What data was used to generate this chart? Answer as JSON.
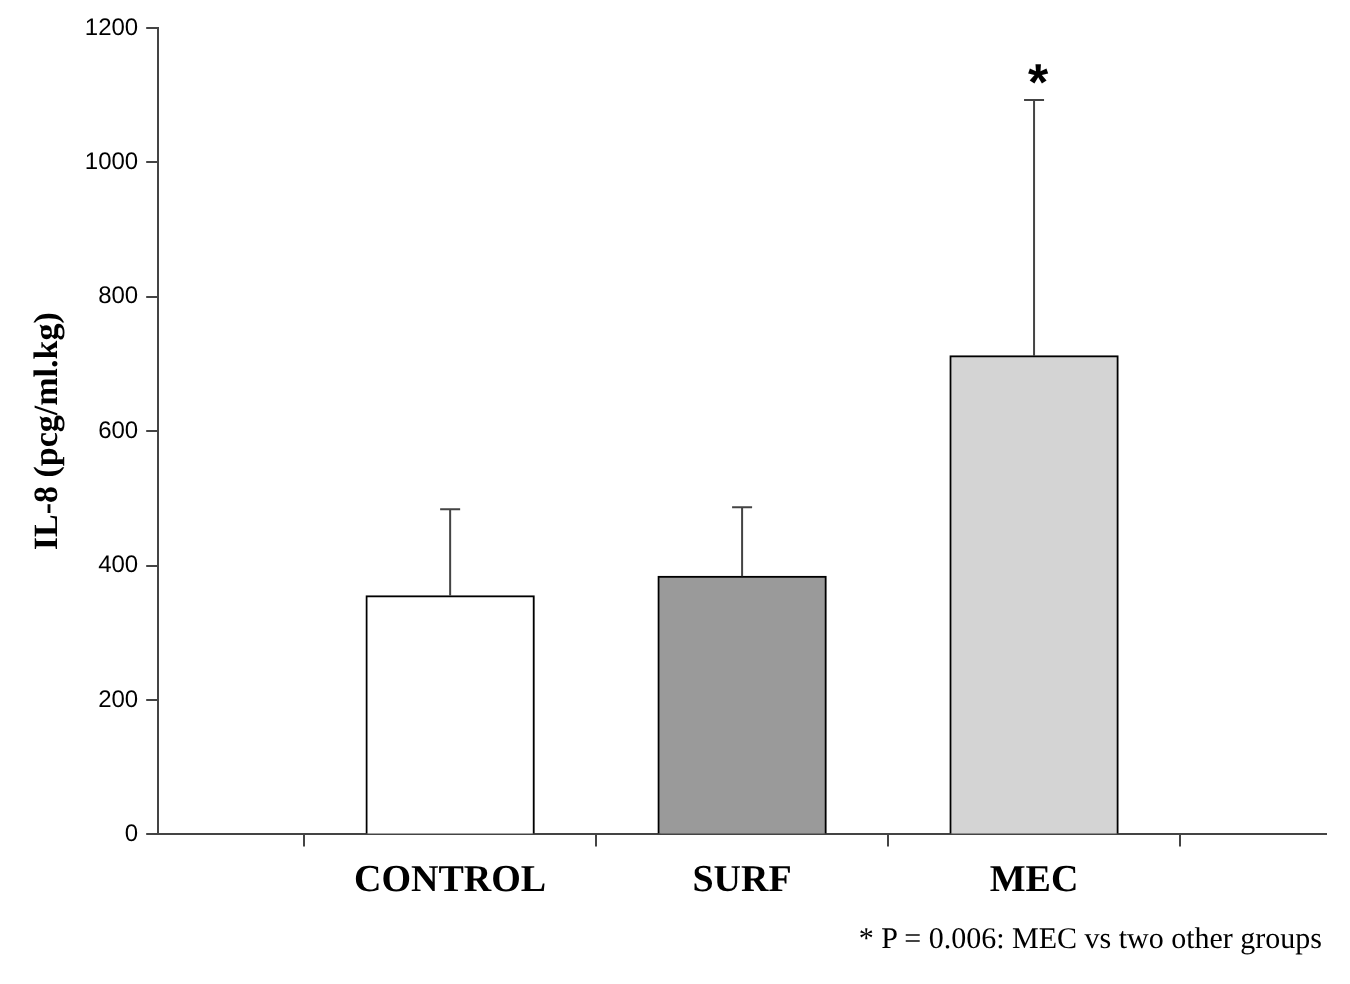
{
  "chart_data": {
    "type": "bar",
    "ylabel": "IL-8 (pcg/ml.kg)",
    "categories": [
      "CONTROL",
      "SURF",
      "MEC"
    ],
    "values": [
      355,
      384,
      712
    ],
    "colors": [
      "#ffffff",
      "#9a9a9a",
      "#d4d4d4"
    ],
    "errors": [
      [
        355,
        484
      ],
      [
        384,
        487
      ],
      [
        712,
        1093
      ]
    ],
    "ylim": [
      0,
      1200
    ],
    "yticks": [
      0,
      200,
      400,
      600,
      800,
      1000,
      1200
    ],
    "grid": false,
    "legend": false,
    "annotations": [
      {
        "text": "*",
        "x": "MEC",
        "y": 1093
      },
      "* P = 0.006:  MEC vs two other groups"
    ]
  }
}
